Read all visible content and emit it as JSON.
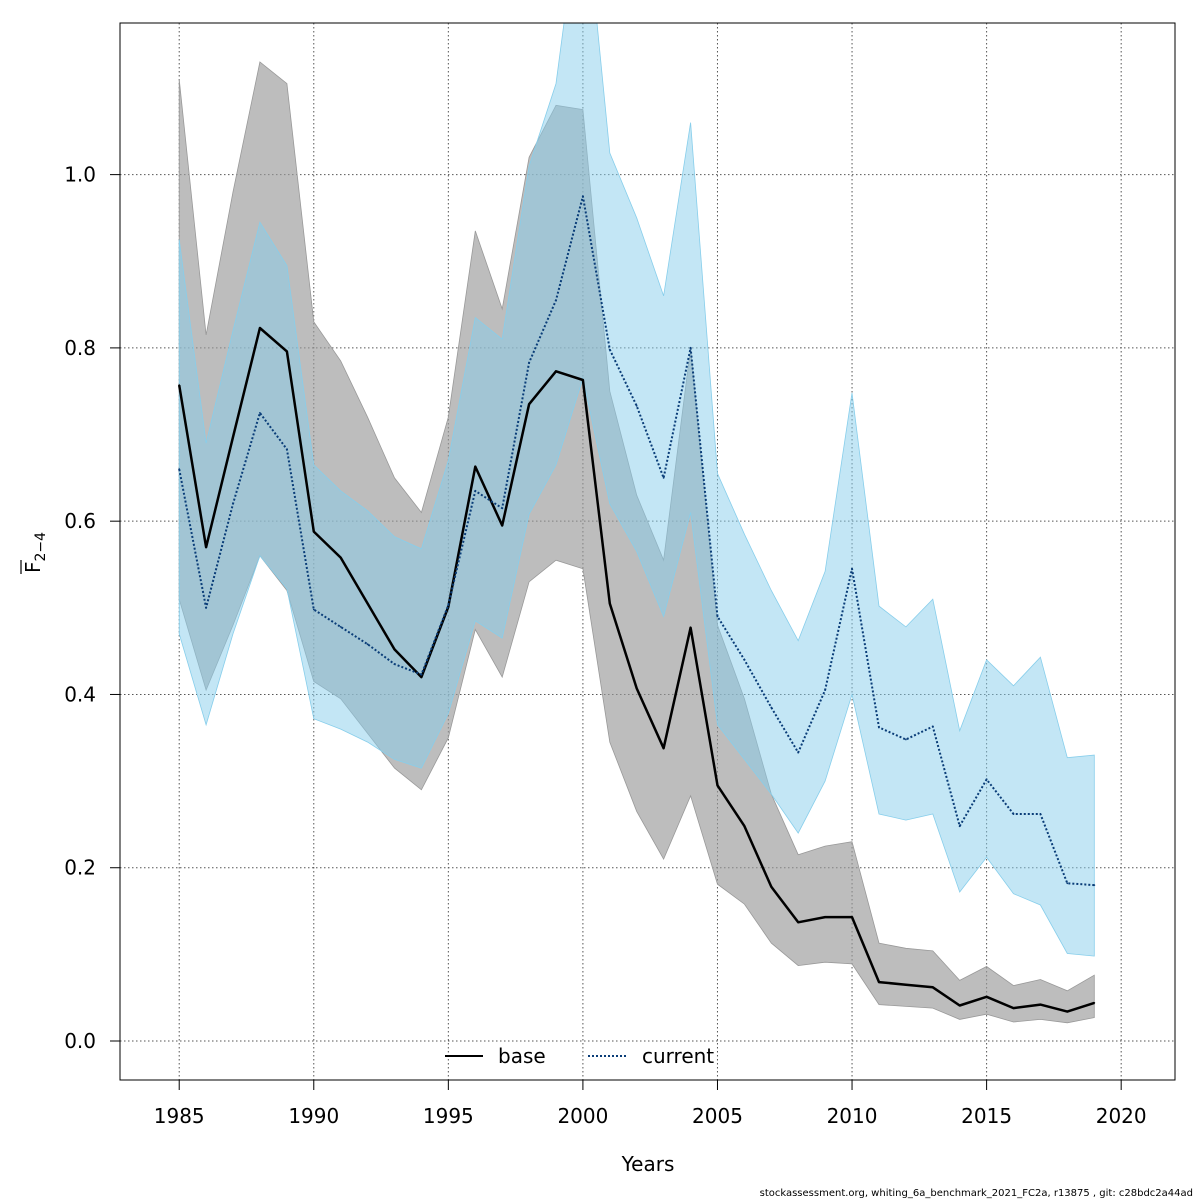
{
  "chart_data": {
    "type": "line",
    "xlabel": "Years",
    "ylabel_main": "F",
    "ylabel_sub": "2−4",
    "xlim": [
      1982.8,
      2022.0
    ],
    "ylim": [
      -0.045,
      1.175
    ],
    "xticks": [
      1985,
      1990,
      1995,
      2000,
      2005,
      2010,
      2015,
      2020
    ],
    "yticks": [
      0.0,
      0.2,
      0.4,
      0.6,
      0.8,
      1.0
    ],
    "ytick_labels": [
      "0.0",
      "0.2",
      "0.4",
      "0.6",
      "0.8",
      "1.0"
    ],
    "grid": true,
    "legend_position": "bottom-center",
    "x": [
      1985,
      1986,
      1987,
      1988,
      1989,
      1990,
      1991,
      1992,
      1993,
      1994,
      1995,
      1996,
      1997,
      1998,
      1999,
      2000,
      2001,
      2002,
      2003,
      2004,
      2005,
      2006,
      2007,
      2008,
      2009,
      2010,
      2011,
      2012,
      2013,
      2014,
      2015,
      2016,
      2017,
      2018,
      2019
    ],
    "series": [
      {
        "name": "base",
        "color": "#000000",
        "band_color": "#999999",
        "values": [
          0.757,
          0.57,
          0.697,
          0.823,
          0.796,
          0.588,
          0.558,
          0.505,
          0.452,
          0.42,
          0.501,
          0.663,
          0.595,
          0.735,
          0.773,
          0.763,
          0.505,
          0.407,
          0.338,
          0.477,
          0.295,
          0.248,
          0.178,
          0.137,
          0.143,
          0.143,
          0.068,
          0.065,
          0.062,
          0.041,
          0.051,
          0.038,
          0.042,
          0.034,
          0.044
        ],
        "lower": [
          0.51,
          0.405,
          0.48,
          0.56,
          0.52,
          0.415,
          0.395,
          0.355,
          0.315,
          0.29,
          0.35,
          0.475,
          0.42,
          0.53,
          0.555,
          0.545,
          0.345,
          0.265,
          0.21,
          0.283,
          0.181,
          0.158,
          0.113,
          0.087,
          0.091,
          0.089,
          0.042,
          0.04,
          0.038,
          0.025,
          0.031,
          0.022,
          0.025,
          0.021,
          0.027
        ],
        "upper": [
          1.11,
          0.815,
          0.98,
          1.13,
          1.105,
          0.83,
          0.785,
          0.72,
          0.65,
          0.61,
          0.72,
          0.935,
          0.845,
          1.02,
          1.08,
          1.075,
          0.75,
          0.63,
          0.555,
          0.8,
          0.48,
          0.395,
          0.285,
          0.215,
          0.225,
          0.23,
          0.113,
          0.107,
          0.104,
          0.07,
          0.086,
          0.064,
          0.071,
          0.058,
          0.076
        ]
      },
      {
        "name": "current",
        "color": "#0a3d78",
        "band_color": "#87ceeb",
        "values": [
          0.66,
          0.5,
          0.62,
          0.725,
          0.683,
          0.498,
          0.478,
          0.458,
          0.435,
          0.423,
          0.503,
          0.635,
          0.615,
          0.783,
          0.855,
          0.975,
          0.798,
          0.733,
          0.65,
          0.8,
          0.49,
          0.44,
          0.385,
          0.333,
          0.405,
          0.545,
          0.362,
          0.348,
          0.363,
          0.248,
          0.302,
          0.262,
          0.262,
          0.182,
          0.18
        ],
        "lower": [
          0.47,
          0.365,
          0.47,
          0.56,
          0.522,
          0.372,
          0.36,
          0.345,
          0.325,
          0.315,
          0.378,
          0.485,
          0.465,
          0.608,
          0.665,
          0.765,
          0.62,
          0.565,
          0.49,
          0.61,
          0.365,
          0.325,
          0.285,
          0.24,
          0.3,
          0.4,
          0.262,
          0.255,
          0.262,
          0.172,
          0.212,
          0.17,
          0.157,
          0.101,
          0.098
        ],
        "upper": [
          0.925,
          0.69,
          0.82,
          0.945,
          0.895,
          0.665,
          0.635,
          0.612,
          0.582,
          0.568,
          0.67,
          0.835,
          0.81,
          1.01,
          1.105,
          1.34,
          1.025,
          0.95,
          0.86,
          1.06,
          0.655,
          0.585,
          0.52,
          0.462,
          0.542,
          0.748,
          0.502,
          0.478,
          0.51,
          0.358,
          0.44,
          0.41,
          0.443,
          0.327,
          0.33
        ]
      }
    ]
  },
  "footer": "stockassessment.org, whiting_6a_benchmark_2021_FC2a, r13875 , git: c28bdc2a44ad"
}
